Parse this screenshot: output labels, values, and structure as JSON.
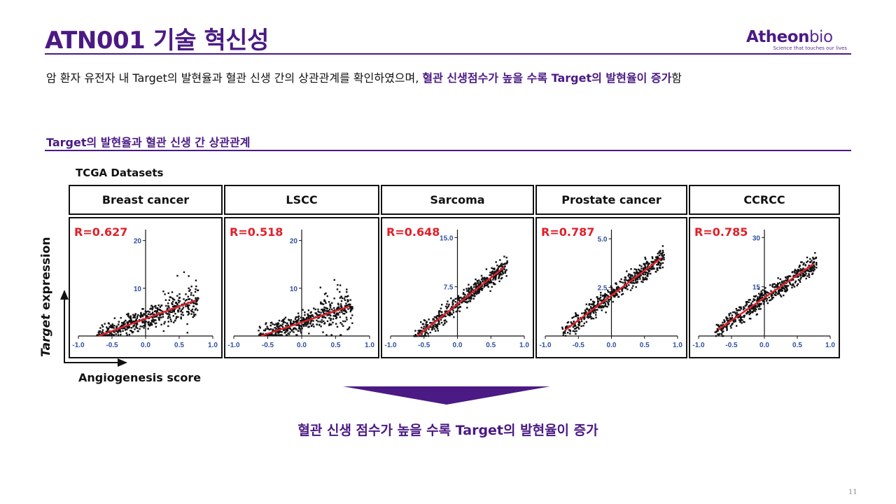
{
  "header": {
    "title": "ATN001 기술 혁신성",
    "logo_main": "Atheon",
    "logo_light": "bio",
    "logo_tagline": "Science that touches our lives"
  },
  "intro": {
    "text_plain": "암 환자 유전자 내 Target의 발현율과 혈관 신생 간의 상관관계를 확인하였으며, ",
    "text_highlight": "혈관 신생점수가 높을 수록 Target의 발현율이 증가",
    "text_tail": "함"
  },
  "section": {
    "title": "Target의 발현율과 혈관 신생 간 상관관계",
    "dataset_label": "TCGA Datasets"
  },
  "axis_labels": {
    "y_italic": "Target",
    "y_rest": " expression",
    "x": "Angiogenesis score"
  },
  "chart_data": [
    {
      "type": "scatter",
      "title": "Breast cancer",
      "annotation": "R=0.627",
      "x_ticks": [
        "-1.0",
        "-0.5",
        "0.0",
        "0.5",
        "1.0"
      ],
      "y_ticks": [
        "10",
        "20"
      ],
      "xlim": [
        -1.0,
        1.0
      ],
      "ylim": [
        0,
        22
      ],
      "trend": {
        "x": [
          -0.7,
          0.75
        ],
        "y": [
          0,
          7.5
        ]
      },
      "colors": {
        "points": "#111111",
        "trend": "#e0202a",
        "ticks": "#2f4fa0"
      }
    },
    {
      "type": "scatter",
      "title": "LSCC",
      "annotation": "R=0.518",
      "x_ticks": [
        "-1.0",
        "-0.5",
        "0.0",
        "0.5",
        "1.0"
      ],
      "y_ticks": [
        "10",
        "20"
      ],
      "xlim": [
        -1.0,
        1.0
      ],
      "ylim": [
        0,
        22
      ],
      "trend": {
        "x": [
          -0.6,
          0.7
        ],
        "y": [
          0,
          6.2
        ]
      },
      "colors": {
        "points": "#111111",
        "trend": "#e0202a",
        "ticks": "#2f4fa0"
      }
    },
    {
      "type": "scatter",
      "title": "Sarcoma",
      "annotation": "R=0.648",
      "x_ticks": [
        "-1.0",
        "-0.5",
        "0.0",
        "0.5",
        "1.0"
      ],
      "y_ticks": [
        "7.5",
        "15.0"
      ],
      "xlim": [
        -1.0,
        1.0
      ],
      "ylim": [
        0,
        16
      ],
      "trend": {
        "x": [
          -0.6,
          0.7
        ],
        "y": [
          0,
          10.5
        ]
      },
      "colors": {
        "points": "#111111",
        "trend": "#e0202a",
        "ticks": "#2f4fa0"
      }
    },
    {
      "type": "scatter",
      "title": "Prostate cancer",
      "annotation": "R=0.787",
      "x_ticks": [
        "-1.0",
        "-0.5",
        "0.0",
        "0.5",
        "1.0"
      ],
      "y_ticks": [
        "2.5",
        "5.0"
      ],
      "xlim": [
        -1.0,
        1.0
      ],
      "ylim": [
        0,
        5.4
      ],
      "trend": {
        "x": [
          -0.7,
          0.75
        ],
        "y": [
          0.3,
          4.0
        ]
      },
      "colors": {
        "points": "#111111",
        "trend": "#e0202a",
        "ticks": "#2f4fa0"
      }
    },
    {
      "type": "scatter",
      "title": "CCRCC",
      "annotation": "R=0.785",
      "x_ticks": [
        "-1.0",
        "-0.5",
        "0.0",
        "0.5",
        "1.0"
      ],
      "y_ticks": [
        "15",
        "30"
      ],
      "xlim": [
        -1.0,
        1.0
      ],
      "ylim": [
        0,
        32
      ],
      "trend": {
        "x": [
          -0.7,
          0.75
        ],
        "y": [
          2,
          22
        ]
      },
      "colors": {
        "points": "#111111",
        "trend": "#e0202a",
        "ticks": "#2f4fa0"
      }
    }
  ],
  "conclusion": "혈관 신생 점수가 높을 수록 Target의 발현율이 증가",
  "page_number": "11",
  "colors": {
    "brand": "#4b1a84",
    "highlight_red": "#e0202a"
  }
}
